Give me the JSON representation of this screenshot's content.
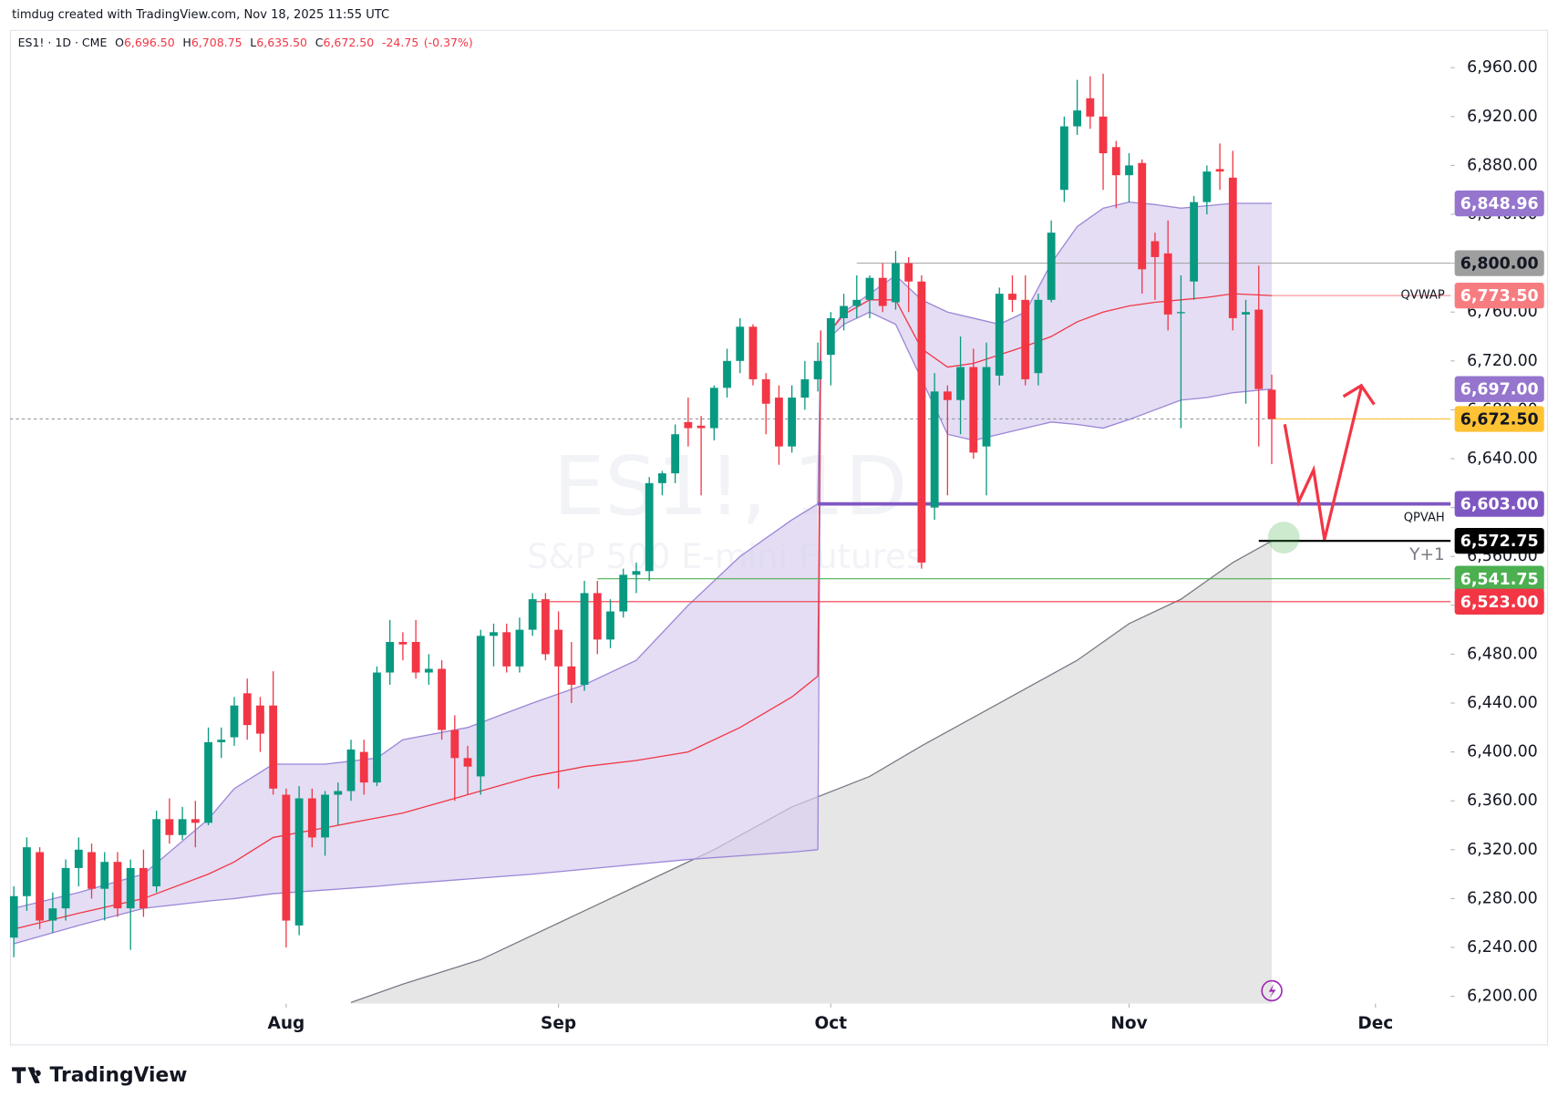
{
  "header": "timdug created with TradingView.com, Nov 18, 2025 11:55 UTC",
  "logo": "TradingView",
  "chart_data": {
    "type": "candlestick",
    "symbol": "ES1! · 1D · CME",
    "watermark": "ES1!, 1D",
    "watermark_subtitle": "S&P 500 E-mini Futures",
    "ohlc_legend": [
      {
        "key": "O",
        "value": 6696.5,
        "label": "6,696.50"
      },
      {
        "key": "H",
        "value": 6708.75,
        "label": "6,708.75"
      },
      {
        "key": "L",
        "value": 6635.5,
        "label": "6,635.50"
      },
      {
        "key": "C",
        "value": 6672.5,
        "label": "6,672.50"
      }
    ],
    "change": {
      "value": -24.75,
      "label": "-24.75"
    },
    "change_pct": {
      "value": -0.37,
      "label": "(-0.37%)"
    },
    "up_color": "#089981",
    "down_color": "#f23645",
    "open": [
      6248,
      6282,
      6318,
      6262,
      6272,
      6305,
      6318,
      6288,
      6310,
      6272,
      6305,
      6290,
      6345,
      6332,
      6345,
      6342,
      6408,
      6412,
      6448,
      6438,
      6438,
      6365,
      6258,
      6362,
      6330,
      6365,
      6368,
      6400,
      6375,
      6465,
      6490,
      6490,
      6465,
      6468,
      6418,
      6395,
      6380,
      6495,
      6498,
      6470,
      6500,
      6525,
      6500,
      6470,
      6455,
      6530,
      6492,
      6515,
      6545,
      6548,
      6620,
      6628,
      6670,
      6667,
      6665,
      6698,
      6720,
      6748,
      6705,
      6690,
      6650,
      6690,
      6705,
      6725,
      6755,
      6765,
      6770,
      6788,
      6768,
      6800,
      6785,
      6600,
      6695,
      6688,
      6715,
      6650,
      6708,
      6775,
      6770,
      6710,
      6770,
      6860,
      6912,
      6935,
      6920,
      6895,
      6872,
      6882,
      6818,
      6808,
      6760,
      6785,
      6850,
      6877,
      6870,
      6758,
      6762,
      6696.5
    ],
    "high": [
      6290,
      6330,
      6322,
      6285,
      6312,
      6330,
      6325,
      6318,
      6318,
      6312,
      6320,
      6352,
      6362,
      6355,
      6360,
      6420,
      6420,
      6445,
      6460,
      6445,
      6466,
      6370,
      6372,
      6370,
      6368,
      6375,
      6410,
      6410,
      6470,
      6508,
      6498,
      6508,
      6480,
      6475,
      6430,
      6405,
      6500,
      6505,
      6505,
      6510,
      6530,
      6530,
      6515,
      6490,
      6540,
      6540,
      6525,
      6550,
      6555,
      6625,
      6630,
      6668,
      6690,
      6675,
      6700,
      6730,
      6755,
      6750,
      6710,
      6700,
      6700,
      6720,
      6735,
      6760,
      6775,
      6790,
      6790,
      6800,
      6810,
      6805,
      6790,
      6710,
      6700,
      6740,
      6730,
      6735,
      6780,
      6790,
      6790,
      6775,
      6835,
      6920,
      6950,
      6953,
      6955,
      6900,
      6890,
      6885,
      6825,
      6835,
      6790,
      6855,
      6880,
      6898,
      6892,
      6770,
      6798,
      6708.75
    ],
    "low": [
      6232,
      6270,
      6255,
      6252,
      6262,
      6290,
      6280,
      6262,
      6265,
      6238,
      6265,
      6285,
      6325,
      6328,
      6322,
      6340,
      6395,
      6405,
      6410,
      6400,
      6365,
      6240,
      6250,
      6322,
      6315,
      6340,
      6360,
      6365,
      6372,
      6455,
      6475,
      6460,
      6455,
      6410,
      6360,
      6365,
      6365,
      6470,
      6465,
      6465,
      6495,
      6475,
      6370,
      6440,
      6450,
      6480,
      6485,
      6510,
      6530,
      6540,
      6610,
      6620,
      6650,
      6610,
      6655,
      6690,
      6710,
      6700,
      6660,
      6635,
      6645,
      6680,
      6695,
      6700,
      6745,
      6755,
      6755,
      6760,
      6762,
      6760,
      6550,
      6590,
      6610,
      6660,
      6640,
      6610,
      6700,
      6760,
      6700,
      6700,
      6768,
      6850,
      6905,
      6910,
      6860,
      6845,
      6850,
      6775,
      6770,
      6745,
      6665,
      6770,
      6840,
      6860,
      6745,
      6685,
      6650,
      6635.5
    ],
    "close": [
      6282,
      6322,
      6262,
      6272,
      6305,
      6320,
      6288,
      6310,
      6272,
      6305,
      6272,
      6345,
      6332,
      6345,
      6342,
      6408,
      6410,
      6438,
      6422,
      6415,
      6370,
      6262,
      6362,
      6330,
      6365,
      6368,
      6402,
      6375,
      6465,
      6490,
      6488,
      6465,
      6468,
      6418,
      6395,
      6388,
      6495,
      6498,
      6470,
      6500,
      6525,
      6480,
      6470,
      6455,
      6530,
      6492,
      6515,
      6545,
      6548,
      6620,
      6628,
      6660,
      6665,
      6665,
      6698,
      6720,
      6748,
      6705,
      6685,
      6650,
      6690,
      6705,
      6720,
      6755,
      6765,
      6770,
      6788,
      6765,
      6800,
      6785,
      6555,
      6695,
      6688,
      6715,
      6645,
      6715,
      6775,
      6770,
      6705,
      6770,
      6825,
      6912,
      6925,
      6920,
      6890,
      6872,
      6880,
      6795,
      6805,
      6758,
      6760,
      6850,
      6875,
      6875,
      6755,
      6760,
      6697,
      6672.5
    ],
    "xlim": [
      -0.3,
      110.8
    ],
    "ylim": [
      6194,
      6991
    ],
    "xticks": [
      {
        "value": 21,
        "label": "Aug"
      },
      {
        "value": 42,
        "label": "Sep"
      },
      {
        "value": 63,
        "label": "Oct"
      },
      {
        "value": 86,
        "label": "Nov"
      },
      {
        "value": 105,
        "label": "Dec"
      }
    ],
    "yticks": [
      {
        "value": 6200,
        "label": "6,200.00"
      },
      {
        "value": 6240,
        "label": "6,240.00"
      },
      {
        "value": 6280,
        "label": "6,280.00"
      },
      {
        "value": 6320,
        "label": "6,320.00"
      },
      {
        "value": 6360,
        "label": "6,360.00"
      },
      {
        "value": 6400,
        "label": "6,400.00"
      },
      {
        "value": 6440,
        "label": "6,440.00"
      },
      {
        "value": 6480,
        "label": "6,480.00"
      },
      {
        "value": 6520,
        "label": "6,520.00"
      },
      {
        "value": 6560,
        "label": "6,560.00"
      },
      {
        "value": 6600,
        "label": "6,600.00"
      },
      {
        "value": 6640,
        "label": "6,640.00"
      },
      {
        "value": 6680,
        "label": "6,680.00"
      },
      {
        "value": 6720,
        "label": "6,720.00"
      },
      {
        "value": 6760,
        "label": "6,760.00"
      },
      {
        "value": 6800,
        "label": "6,800.00"
      },
      {
        "value": 6840,
        "label": "6,840.00"
      },
      {
        "value": 6880,
        "label": "6,880.00"
      },
      {
        "value": 6920,
        "label": "6,920.00"
      },
      {
        "value": 6960,
        "label": "6,960.00"
      }
    ],
    "bands": [
      {
        "x": [
          0,
          5,
          10,
          15,
          17,
          20,
          24,
          28,
          30,
          35,
          40,
          44,
          48,
          52,
          56,
          60,
          62
        ],
        "upper": [
          6272,
          6285,
          6300,
          6345,
          6370,
          6390,
          6390,
          6395,
          6410,
          6420,
          6440,
          6455,
          6475,
          6520,
          6560,
          6590,
          6603
        ],
        "lower": [
          6243,
          6258,
          6272,
          6278,
          6280,
          6284,
          6287,
          6290,
          6292,
          6296,
          6300,
          6304,
          6308,
          6312,
          6315,
          6318,
          6320
        ],
        "mid": [
          6255,
          6268,
          6280,
          6300,
          6310,
          6330,
          6338,
          6346,
          6350,
          6365,
          6380,
          6388,
          6393,
          6400,
          6420,
          6445,
          6462
        ]
      },
      {
        "x": [
          63,
          64,
          66,
          68,
          70,
          72,
          74,
          76,
          78,
          80,
          82,
          84,
          86,
          88,
          90,
          92,
          94,
          97
        ],
        "upper": [
          6745,
          6760,
          6775,
          6790,
          6770,
          6760,
          6755,
          6750,
          6760,
          6800,
          6830,
          6845,
          6850,
          6848,
          6845,
          6847,
          6849,
          6848.96
        ],
        "lower": [
          6740,
          6750,
          6760,
          6750,
          6705,
          6660,
          6655,
          6660,
          6665,
          6670,
          6668,
          6665,
          6672,
          6680,
          6688,
          6690,
          6694,
          6697
        ],
        "mid": [
          6745,
          6758,
          6770,
          6770,
          6730,
          6715,
          6718,
          6725,
          6732,
          6740,
          6752,
          6760,
          6765,
          6768,
          6770,
          6772,
          6775,
          6773.5
        ]
      }
    ],
    "band_fill": "#d8cef0",
    "band_line": "#9c86d6",
    "mid_line": "#f23645",
    "average": {
      "x": [
        26,
        30,
        36,
        42,
        48,
        54,
        60,
        66,
        70,
        76,
        82,
        86,
        90,
        94,
        97
      ],
      "values": [
        6195,
        6210,
        6230,
        6260,
        6290,
        6320,
        6355,
        6380,
        6405,
        6440,
        6475,
        6505,
        6525,
        6555,
        6572.75
      ],
      "color": "#787b86",
      "fill": "#e6e6e6"
    },
    "levels": [
      {
        "value": 6848.96,
        "label": "6,848.96",
        "color": "#9575cd",
        "text_color": "#ffffff"
      },
      {
        "value": 6800,
        "label": "6,800.00",
        "color": "#9e9e9e",
        "text_color": "#131722",
        "x_start": 65
      },
      {
        "value": 6773.5,
        "label": "6,773.50",
        "color": "#f77c80",
        "text_color": "#ffffff",
        "x_start": 97,
        "name": "QVWAP"
      },
      {
        "value": 6697,
        "label": "6,697.00",
        "color": "#9575cd",
        "text_color": "#ffffff"
      },
      {
        "value": 6672.5,
        "label": "6,672.50",
        "color": "#ffc233",
        "text_color": "#131722",
        "x_start": 97,
        "current": true
      },
      {
        "value": 6603,
        "label": "6,603.00",
        "color": "#7e57c2",
        "text_color": "#ffffff",
        "x_start": 62,
        "name": "QPVAH",
        "thick": true
      },
      {
        "value": 6572.75,
        "label": "6,572.75",
        "color": "#000000",
        "text_color": "#ffffff",
        "x_start": 96,
        "name": "Y+1"
      },
      {
        "value": 6541.75,
        "label": "6,541.75",
        "color": "#4caf50",
        "text_color": "#ffffff",
        "x_start": 45
      },
      {
        "value": 6523,
        "label": "6,523.00",
        "color": "#f23645",
        "text_color": "#ffffff",
        "x_start": 40
      }
    ]
  }
}
